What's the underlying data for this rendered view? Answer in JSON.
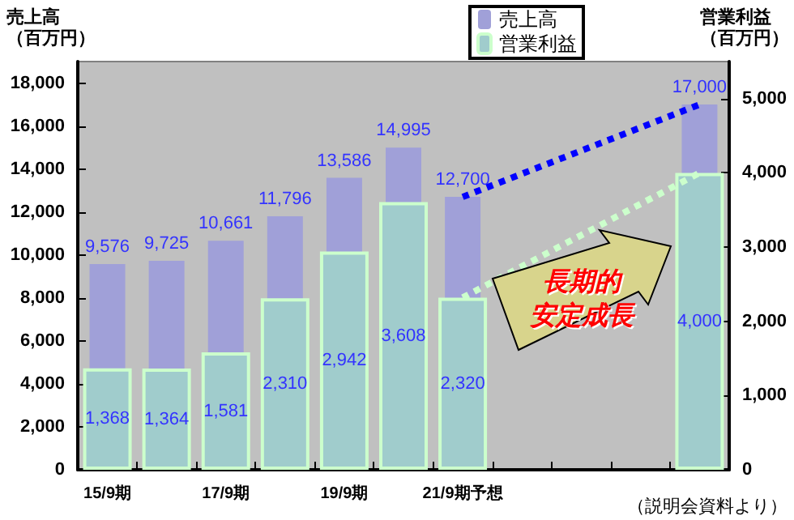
{
  "chart_data": {
    "type": "bar",
    "ylabel": "売上高（百万円）",
    "y2label": "営業利益（百万円）",
    "categories": [
      "15/9期",
      null,
      "17/9期",
      null,
      "19/9期",
      null,
      "21/9期予想",
      null,
      null,
      null,
      null
    ],
    "series": [
      {
        "name": "売上高",
        "color": "#a0a0d8",
        "values": [
          9576,
          9725,
          10661,
          11796,
          13586,
          14995,
          12700,
          null,
          null,
          null,
          17000
        ],
        "value_labels": [
          "9,576",
          "9,725",
          "10,661",
          "11,796",
          "13,586",
          "14,995",
          "12,700",
          null,
          null,
          null,
          "17,000"
        ]
      },
      {
        "name": "営業利益",
        "axis": "y2",
        "color": "#a0cccc",
        "values": [
          1368,
          1364,
          1581,
          2310,
          2942,
          3608,
          2320,
          null,
          null,
          null,
          4000
        ],
        "value_labels": [
          "1,368",
          "1,364",
          "1,581",
          "2,310",
          "2,942",
          "3,608",
          "2,320",
          null,
          null,
          null,
          "4,000"
        ]
      },
      {
        "type": "line",
        "color": "#0000ff",
        "line_style": "dotted",
        "values": [
          null,
          null,
          null,
          null,
          null,
          null,
          12700,
          null,
          null,
          null,
          17000
        ]
      },
      {
        "type": "line",
        "axis": "y2",
        "color": "#ccffcc",
        "line_style": "dotted",
        "values": [
          null,
          null,
          null,
          null,
          null,
          null,
          2320,
          null,
          null,
          null,
          4000
        ]
      }
    ],
    "ylim": [
      0,
      19000
    ],
    "yticks": [
      0,
      {
        "value": 2000,
        "label": "2,000"
      },
      {
        "value": 4000,
        "label": "4,000"
      },
      {
        "value": 6000,
        "label": "6,000"
      },
      {
        "value": 8000,
        "label": "8,000"
      },
      {
        "value": 10000,
        "label": "10,000"
      },
      {
        "value": 12000,
        "label": "12,000"
      },
      {
        "value": 14000,
        "label": "14,000"
      },
      {
        "value": 16000,
        "label": "16,000"
      },
      {
        "value": 18000,
        "label": "18,000"
      }
    ],
    "y2lim": [
      0,
      5500
    ],
    "y2ticks": [
      0,
      {
        "value": 1000,
        "label": "1,000"
      },
      {
        "value": 2000,
        "label": "2,000"
      },
      {
        "value": 3000,
        "label": "3,000"
      },
      {
        "value": 4000,
        "label": "4,000"
      },
      {
        "value": 5000,
        "label": "5,000"
      }
    ],
    "grid": false,
    "legend": "top",
    "annotations": [
      "長期的",
      "安定成長",
      "（説明会資料より）"
    ]
  }
}
